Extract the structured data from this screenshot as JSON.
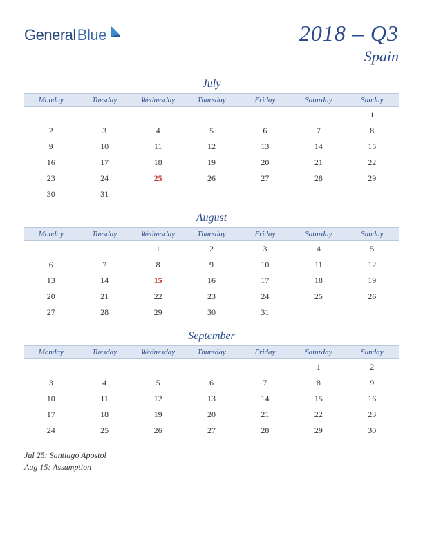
{
  "logo": {
    "general": "General",
    "blue": "Blue"
  },
  "title": {
    "period": "2018 – Q3",
    "country": "Spain"
  },
  "colors": {
    "header_bg": "#dde6f2",
    "header_border": "#b8c8dd",
    "title_color": "#2a4a8a",
    "holiday_color": "#c03030",
    "text_color": "#333333"
  },
  "day_names": [
    "Monday",
    "Tuesday",
    "Wednesday",
    "Thursday",
    "Friday",
    "Saturday",
    "Sunday"
  ],
  "months": [
    {
      "name": "July",
      "weeks": [
        [
          "",
          "",
          "",
          "",
          "",
          "",
          "1"
        ],
        [
          "2",
          "3",
          "4",
          "5",
          "6",
          "7",
          "8"
        ],
        [
          "9",
          "10",
          "11",
          "12",
          "13",
          "14",
          "15"
        ],
        [
          "16",
          "17",
          "18",
          "19",
          "20",
          "21",
          "22"
        ],
        [
          "23",
          "24",
          "25",
          "26",
          "27",
          "28",
          "29"
        ],
        [
          "30",
          "31",
          "",
          "",
          "",
          "",
          ""
        ]
      ],
      "holidays": [
        "25"
      ]
    },
    {
      "name": "August",
      "weeks": [
        [
          "",
          "",
          "1",
          "2",
          "3",
          "4",
          "5"
        ],
        [
          "6",
          "7",
          "8",
          "9",
          "10",
          "11",
          "12"
        ],
        [
          "13",
          "14",
          "15",
          "16",
          "17",
          "18",
          "19"
        ],
        [
          "20",
          "21",
          "22",
          "23",
          "24",
          "25",
          "26"
        ],
        [
          "27",
          "28",
          "29",
          "30",
          "31",
          "",
          ""
        ]
      ],
      "holidays": [
        "15"
      ]
    },
    {
      "name": "September",
      "weeks": [
        [
          "",
          "",
          "",
          "",
          "",
          "1",
          "2"
        ],
        [
          "3",
          "4",
          "5",
          "6",
          "7",
          "8",
          "9"
        ],
        [
          "10",
          "11",
          "12",
          "13",
          "14",
          "15",
          "16"
        ],
        [
          "17",
          "18",
          "19",
          "20",
          "21",
          "22",
          "23"
        ],
        [
          "24",
          "25",
          "26",
          "27",
          "28",
          "29",
          "30"
        ]
      ],
      "holidays": []
    }
  ],
  "holiday_list": [
    "Jul 25: Santiago Apostol",
    "Aug 15: Assumption"
  ]
}
